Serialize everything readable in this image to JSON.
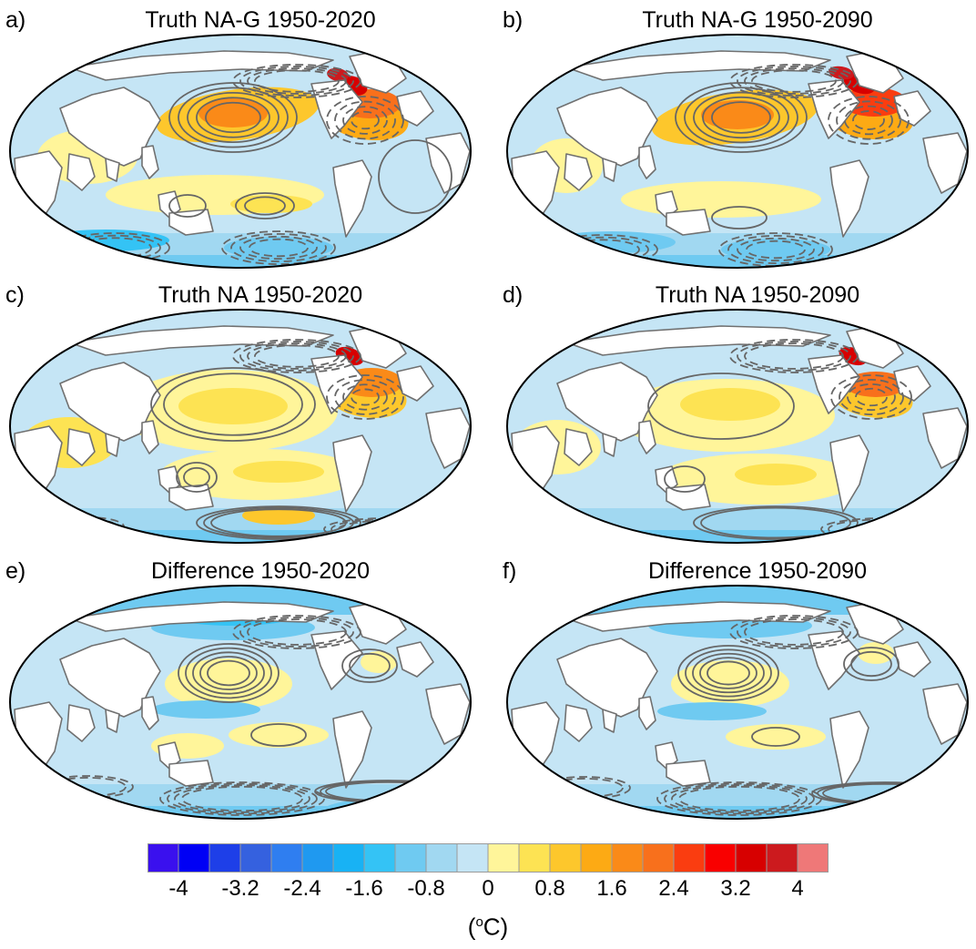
{
  "panels": [
    {
      "label": "a)",
      "title": "Truth NA-G 1950-2020"
    },
    {
      "label": "b)",
      "title": "Truth NA-G 1950-2090"
    },
    {
      "label": "c)",
      "title": "Truth NA 1950-2020"
    },
    {
      "label": "d)",
      "title": "Truth NA 1950-2090"
    },
    {
      "label": "e)",
      "title": "Difference 1950-2020"
    },
    {
      "label": "f)",
      "title": "Difference 1950-2090"
    }
  ],
  "colorbar": {
    "colors": [
      "#3a10ee",
      "#0000f5",
      "#1e3fe8",
      "#3561df",
      "#2f7ef0",
      "#1f99f0",
      "#18b2f4",
      "#34c3f5",
      "#6fcaf1",
      "#a1d8f1",
      "#c5e5f5",
      "#fff59a",
      "#fde353",
      "#fdc72c",
      "#fdaa14",
      "#fa8a18",
      "#f8701c",
      "#fa3d10",
      "#f90000",
      "#d70000",
      "#cc1a1e",
      "#ef7878"
    ],
    "tick_labels": [
      "-4",
      "-3.2",
      "-2.4",
      "-1.6",
      "-0.8",
      "0",
      "0.8",
      "1.6",
      "2.4",
      "3.2",
      "4"
    ],
    "units_prefix": "(",
    "units_sup": "o",
    "units_suffix": "C)"
  }
}
